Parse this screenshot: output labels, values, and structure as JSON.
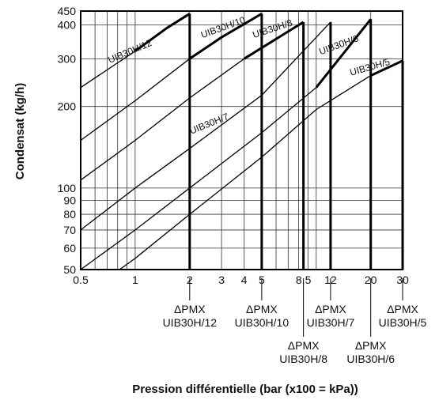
{
  "chart_data": {
    "type": "line",
    "xlabel": "Pression différentielle (bar (x100 = kPa))",
    "ylabel": "Condensat (kg/h)",
    "xscale": "log",
    "yscale": "log",
    "xlim": [
      0.5,
      30
    ],
    "ylim": [
      50,
      450
    ],
    "grid": true,
    "x_ticks": [
      {
        "value": 0.5,
        "label": "0.5"
      },
      {
        "value": 1,
        "label": "1"
      },
      {
        "value": 2,
        "label": "2"
      },
      {
        "value": 3,
        "label": "3"
      },
      {
        "value": 4,
        "label": "4"
      },
      {
        "value": 5,
        "label": "5"
      },
      {
        "value": 8.5,
        "label": "8.5"
      },
      {
        "value": 12,
        "label": "12"
      },
      {
        "value": 20,
        "label": "20"
      },
      {
        "value": 30,
        "label": "30"
      }
    ],
    "y_ticks": [
      {
        "value": 50,
        "label": "50"
      },
      {
        "value": 60,
        "label": "60"
      },
      {
        "value": 70,
        "label": "70"
      },
      {
        "value": 80,
        "label": "80"
      },
      {
        "value": 90,
        "label": "90"
      },
      {
        "value": 100,
        "label": "100"
      },
      {
        "value": 200,
        "label": "200"
      },
      {
        "value": 300,
        "label": "300"
      },
      {
        "value": 400,
        "label": "400"
      },
      {
        "value": 450,
        "label": "450"
      }
    ],
    "series": [
      {
        "name": "UIB30H/12",
        "x": [
          0.5,
          1,
          1.5,
          2
        ],
        "y": [
          235,
          320,
          390,
          440
        ],
        "max_dp": 2
      },
      {
        "name": "UIB30H/10",
        "x": [
          0.5,
          1,
          2,
          3,
          5
        ],
        "y": [
          150,
          210,
          300,
          360,
          440
        ],
        "max_dp": 5
      },
      {
        "name": "UIB30H/8",
        "x": [
          0.5,
          1,
          2,
          4,
          8.5
        ],
        "y": [
          107,
          150,
          215,
          300,
          410
        ],
        "max_dp": 8.5
      },
      {
        "name": "UIB30H/7",
        "x": [
          0.5,
          1,
          2,
          5,
          12
        ],
        "y": [
          70,
          100,
          140,
          220,
          410
        ],
        "max_dp": 12
      },
      {
        "name": "UIB30H/6",
        "x": [
          0.5,
          1,
          2,
          5,
          10,
          20
        ],
        "y": [
          50,
          70,
          100,
          160,
          235,
          420
        ],
        "max_dp": 20
      },
      {
        "name": "UIB30H/5",
        "x": [
          0.82,
          1,
          2,
          5,
          10,
          20,
          30
        ],
        "y": [
          50,
          55,
          80,
          130,
          195,
          260,
          295
        ],
        "max_dp": 30
      }
    ],
    "pmx_labels": [
      {
        "line1": "ΔPMX",
        "line2": "UIB30H/12",
        "x": 2,
        "row": 1
      },
      {
        "line1": "ΔPMX",
        "line2": "UIB30H/10",
        "x": 5,
        "row": 1
      },
      {
        "line1": "ΔPMX",
        "line2": "UIB30H/7",
        "x": 12,
        "row": 1
      },
      {
        "line1": "ΔPMX",
        "line2": "UIB30H/5",
        "x": 30,
        "row": 1
      },
      {
        "line1": "ΔPMX",
        "line2": "UIB30H/8",
        "x": 8.5,
        "row": 2
      },
      {
        "line1": "ΔPMX",
        "line2": "UIB30H/6",
        "x": 20,
        "row": 2
      }
    ]
  }
}
